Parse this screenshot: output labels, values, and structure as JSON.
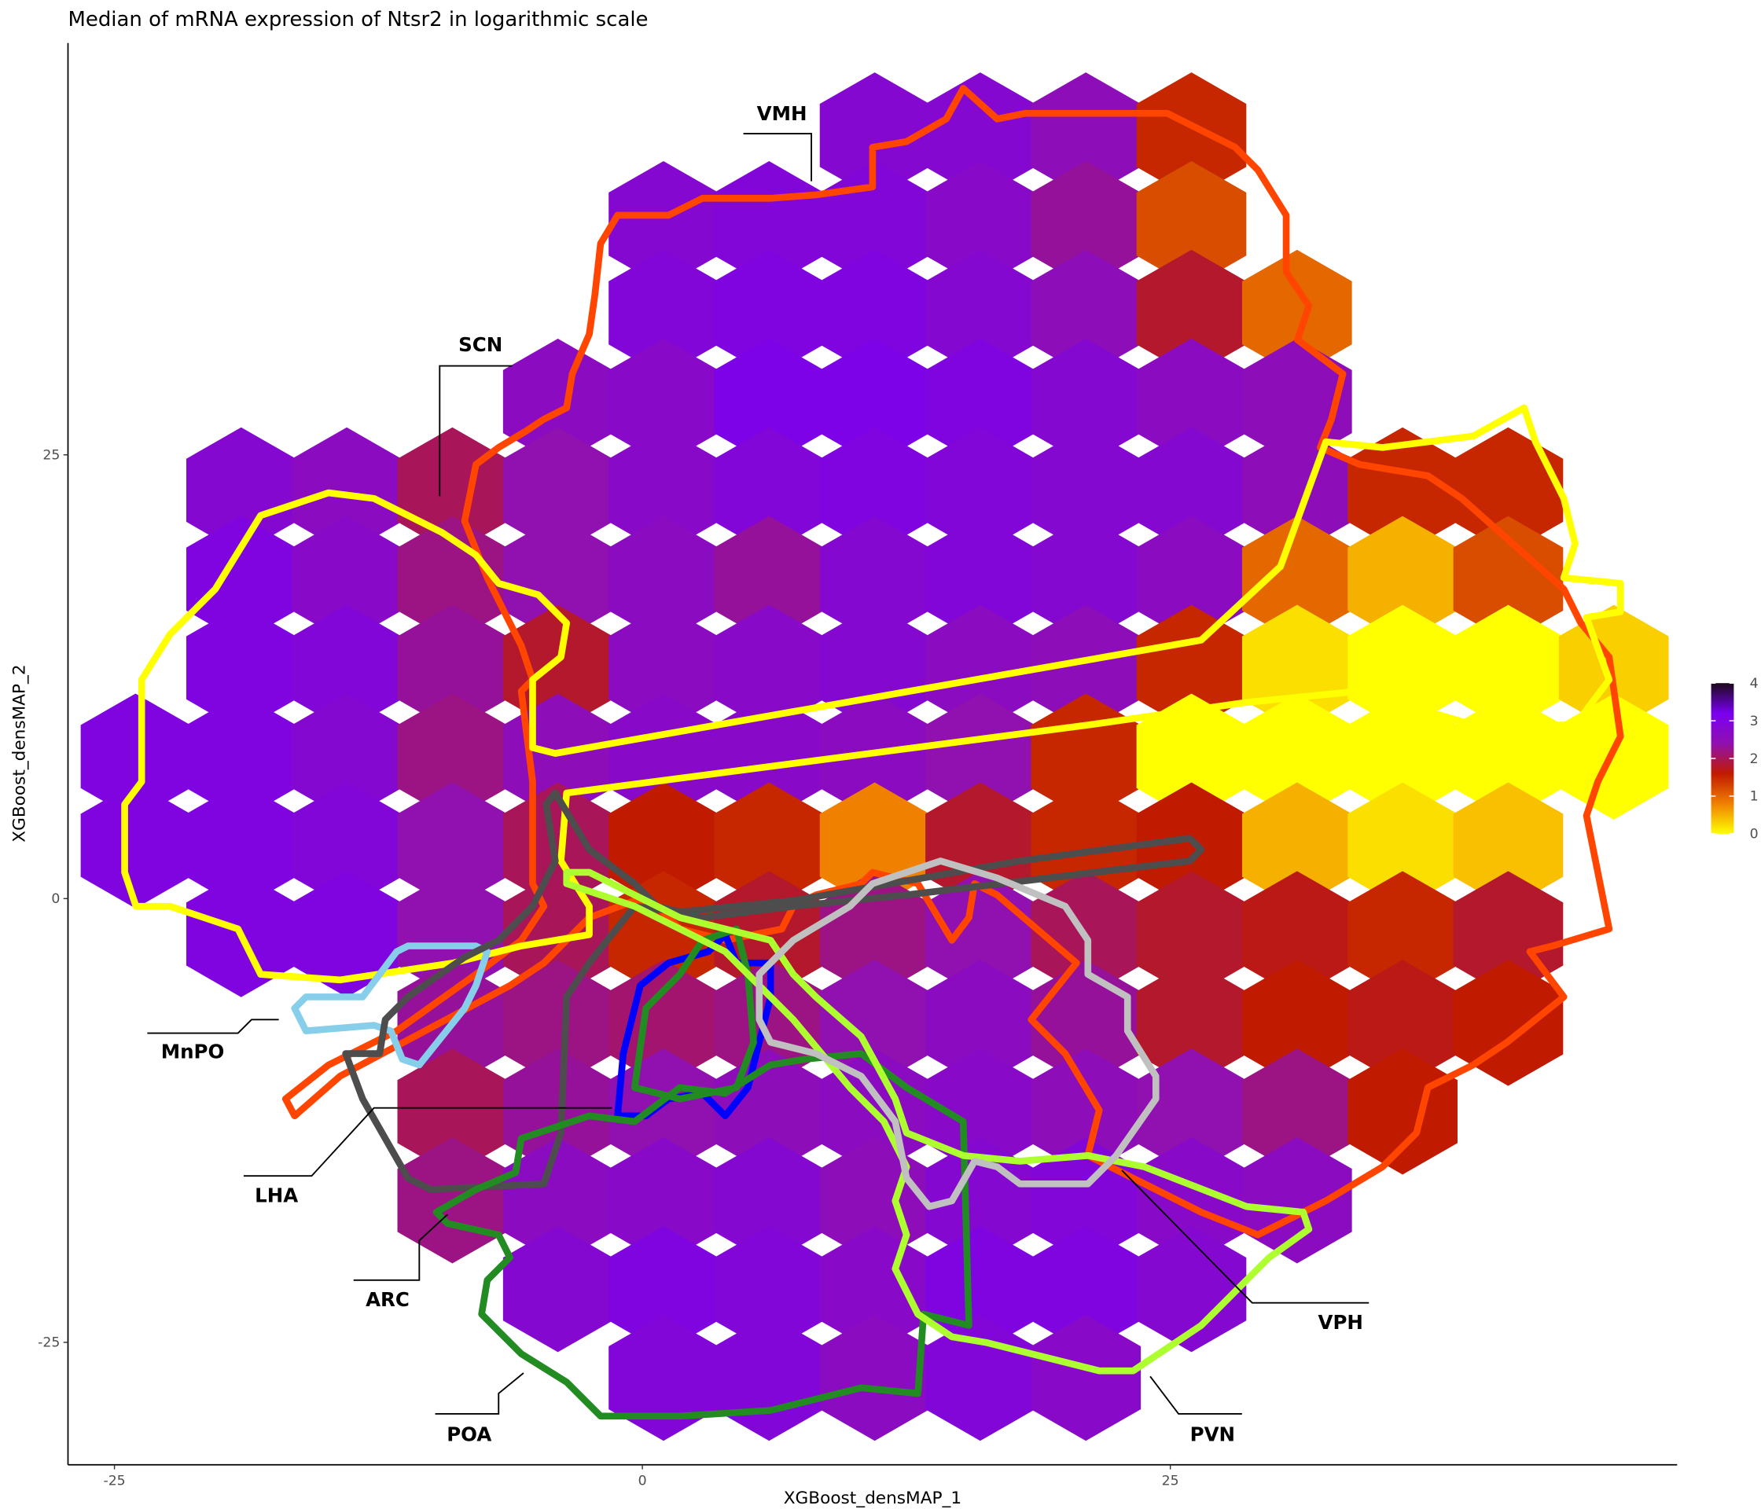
{
  "chart_data": {
    "type": "hexbin",
    "title": "Median of mRNA expression of Ntsr2 in logarithmic scale",
    "x_label": "XGBoost_densMAP_1",
    "y_label": "XGBoost_densMAP_2",
    "x": [
      -24,
      -19,
      -14,
      -9,
      -4,
      1,
      6,
      11,
      16,
      21,
      26,
      31,
      36,
      41,
      46
    ],
    "y": [
      43,
      38,
      33,
      28,
      23,
      18,
      13,
      8,
      3,
      -2,
      -7,
      -12,
      -17,
      -22,
      -27
    ],
    "values": [
      [
        null,
        null,
        null,
        null,
        null,
        null,
        null,
        2.8,
        2.8,
        2.5,
        1.5,
        null,
        null,
        null,
        null
      ],
      [
        null,
        null,
        null,
        null,
        null,
        2.8,
        2.9,
        2.9,
        2.7,
        2.3,
        1.2,
        null,
        null,
        null,
        null
      ],
      [
        null,
        null,
        null,
        null,
        null,
        2.9,
        3.0,
        3.0,
        2.8,
        2.5,
        1.8,
        1.0,
        null,
        null,
        null
      ],
      [
        null,
        null,
        null,
        null,
        2.6,
        2.7,
        3.1,
        3.1,
        3.0,
        2.8,
        2.6,
        2.5,
        null,
        null,
        null
      ],
      [
        null,
        2.8,
        2.6,
        2.0,
        2.4,
        2.7,
        2.9,
        3.0,
        2.9,
        2.8,
        2.8,
        2.5,
        1.5,
        1.5,
        null
      ],
      [
        null,
        3.0,
        2.7,
        2.2,
        2.4,
        2.6,
        2.3,
        2.8,
        2.9,
        2.8,
        2.6,
        1.0,
        0.5,
        1.2,
        null
      ],
      [
        null,
        3.0,
        2.9,
        2.3,
        1.8,
        2.6,
        2.7,
        2.8,
        2.6,
        2.5,
        1.5,
        0.2,
        0,
        0,
        0.3
      ],
      [
        3.0,
        3.0,
        2.8,
        2.2,
        2.5,
        2.7,
        2.7,
        2.6,
        2.4,
        1.5,
        0,
        0,
        0,
        0,
        0
      ],
      [
        3.0,
        3.0,
        2.9,
        2.4,
        2.0,
        1.6,
        1.5,
        0.8,
        1.8,
        1.5,
        1.6,
        0.5,
        0.2,
        0.4,
        null
      ],
      [
        null,
        3.0,
        3.0,
        2.4,
        2.0,
        1.5,
        1.8,
        2.2,
        2.4,
        2.0,
        1.8,
        1.7,
        1.5,
        1.8,
        null
      ],
      [
        null,
        null,
        null,
        2.3,
        2.2,
        2.1,
        2.2,
        2.4,
        2.6,
        2.3,
        1.8,
        1.6,
        1.7,
        1.6,
        null
      ],
      [
        null,
        null,
        null,
        2.0,
        2.3,
        2.4,
        2.5,
        2.6,
        2.7,
        2.5,
        2.4,
        2.2,
        1.6,
        null,
        null
      ],
      [
        null,
        null,
        null,
        2.2,
        2.6,
        2.7,
        2.8,
        2.5,
        2.8,
        2.9,
        2.7,
        2.6,
        null,
        null,
        null
      ],
      [
        null,
        null,
        null,
        null,
        2.8,
        3.0,
        2.9,
        2.7,
        3.0,
        3.0,
        2.8,
        null,
        null,
        null,
        null
      ],
      [
        null,
        null,
        null,
        null,
        null,
        2.9,
        2.9,
        2.6,
        2.9,
        2.7,
        null,
        null,
        null,
        null,
        null
      ]
    ],
    "xlim": [
      -27.2,
      49
    ],
    "ylim": [
      -31.9,
      48.2
    ],
    "xticks": [
      -25,
      0,
      25
    ],
    "yticks": [
      -25,
      0,
      25
    ],
    "colorbar": {
      "lim": [
        0,
        4
      ],
      "ticks": [
        0,
        1,
        2,
        3,
        4
      ],
      "colors": [
        "#ffff00",
        "#f08000",
        "#c01a00",
        "#9010b0",
        "#7a00f0",
        "#1a0a1a"
      ]
    },
    "regions": [
      {
        "name": "VMH",
        "color": "#ff4500"
      },
      {
        "name": "SCN",
        "color": "#ffff00"
      },
      {
        "name": "MnPO",
        "color": "#87ceeb"
      },
      {
        "name": "LHA",
        "color": "#4d4d4d"
      },
      {
        "name": "ARC",
        "color": "#0000ff"
      },
      {
        "name": "POA",
        "color": "#228b22"
      },
      {
        "name": "PVN",
        "color": "#adff2f"
      },
      {
        "name": "VPH",
        "color": "#c0c0c0"
      }
    ]
  }
}
